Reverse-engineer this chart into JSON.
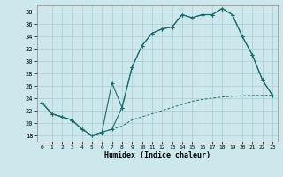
{
  "xlabel": "Humidex (Indice chaleur)",
  "background_color": "#cce8ec",
  "grid_color": "#aaccd4",
  "line_color": "#1a6b6b",
  "xlim": [
    -0.5,
    23.5
  ],
  "ylim": [
    17,
    39
  ],
  "yticks": [
    18,
    20,
    22,
    24,
    26,
    28,
    30,
    32,
    34,
    36,
    38
  ],
  "xticks": [
    0,
    1,
    2,
    3,
    4,
    5,
    6,
    7,
    8,
    9,
    10,
    11,
    12,
    13,
    14,
    15,
    16,
    17,
    18,
    19,
    20,
    21,
    22,
    23
  ],
  "line1_x": [
    0,
    1,
    2,
    3,
    4,
    5,
    6,
    7,
    8,
    9,
    10,
    11,
    12,
    13,
    14,
    15,
    16,
    17,
    18,
    19,
    20,
    21,
    22,
    23
  ],
  "line1_y": [
    23.3,
    21.5,
    21.0,
    20.5,
    19.0,
    18.0,
    18.5,
    19.0,
    22.5,
    29.0,
    32.5,
    34.5,
    35.2,
    35.5,
    37.5,
    37.0,
    37.5,
    37.5,
    38.5,
    37.5,
    34.0,
    31.0,
    27.0,
    24.5
  ],
  "line2_x": [
    0,
    1,
    2,
    3,
    4,
    5,
    6,
    7,
    8,
    9,
    10,
    11,
    12,
    13,
    14,
    15,
    16,
    17,
    18,
    19,
    20,
    21,
    22,
    23
  ],
  "line2_y": [
    23.3,
    21.5,
    21.0,
    20.5,
    19.0,
    18.0,
    18.5,
    26.5,
    22.5,
    29.0,
    32.5,
    34.5,
    35.2,
    35.5,
    37.5,
    37.0,
    37.5,
    37.5,
    38.5,
    37.5,
    34.0,
    31.0,
    27.0,
    24.5
  ],
  "line3_x": [
    0,
    1,
    2,
    3,
    4,
    5,
    6,
    7,
    8,
    9,
    10,
    11,
    12,
    13,
    14,
    15,
    16,
    17,
    18,
    19,
    20,
    21,
    22,
    23
  ],
  "line3_y": [
    23.3,
    21.5,
    21.0,
    20.5,
    19.0,
    18.0,
    18.5,
    19.0,
    19.5,
    20.5,
    21.0,
    21.5,
    22.0,
    22.5,
    23.0,
    23.5,
    23.8,
    24.0,
    24.2,
    24.3,
    24.4,
    24.45,
    24.45,
    24.5
  ]
}
